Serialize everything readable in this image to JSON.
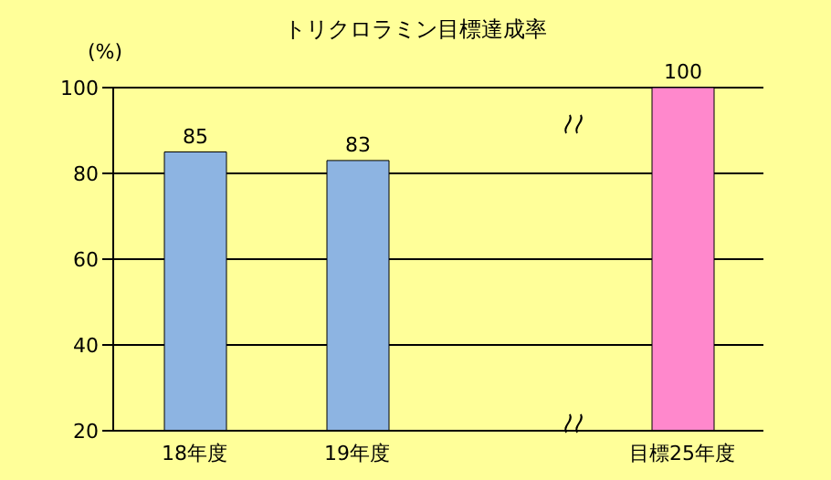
{
  "chart_data": {
    "type": "bar",
    "title": "トリクロラミン目標達成率",
    "ylabel": "(%)",
    "categories": [
      "18年度",
      "19年度",
      null,
      "目標25年度"
    ],
    "values": [
      85,
      83,
      null,
      100
    ],
    "colors": [
      "#8db4e2",
      "#8db4e2",
      null,
      "#ff88cc"
    ],
    "ylim": [
      20,
      100
    ],
    "yticks": [
      20,
      40,
      60,
      80,
      100
    ],
    "grid": "y",
    "data_labels": true
  }
}
